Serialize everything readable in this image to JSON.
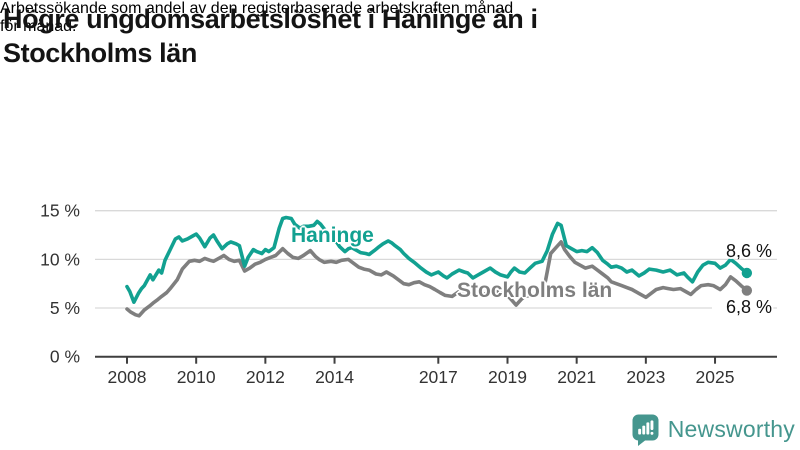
{
  "header": {
    "title_lines": [
      "Högre ungdomsarbetslöshet i Haninge än i",
      "Stockholms län"
    ],
    "subtitle_lines": [
      "Arbetssökande som andel av den registerbaserade arbetskraften månad",
      "för månad."
    ]
  },
  "footer": {
    "brand": "Newsworthy",
    "brand_color": "#45968e"
  },
  "colors": {
    "haninge": "#12a191",
    "stockholm": "#7f7f7f",
    "gridline": "#d9d9d9",
    "axis": "#3f3f3f",
    "tick_text": "#333333"
  },
  "chart_data": {
    "type": "line",
    "title": "Högre ungdomsarbetslöshet i Haninge än i Stockholms län",
    "subtitle": "Arbetssökande som andel av den registerbaserade arbetskraften månad för månad.",
    "unit": "%",
    "grid": "horizontal-only",
    "x_axis": {
      "ticks": [
        2008,
        2010,
        2012,
        2014,
        2017,
        2019,
        2021,
        2023,
        2025
      ],
      "tick_labels": [
        "2008",
        "2010",
        "2012",
        "2014",
        "2017",
        "2019",
        "2021",
        "2023",
        "2025"
      ],
      "min": 2008,
      "max": 2026
    },
    "y_axis": {
      "ticks": [
        0,
        5,
        10,
        15
      ],
      "tick_labels": [
        "0 %",
        "5 %",
        "10 %",
        "15 %"
      ],
      "range": [
        0,
        15
      ]
    },
    "series": [
      {
        "name": "Stockholms län",
        "color": "#7f7f7f",
        "end_label": "6,8 %",
        "end_value": 6.8,
        "points": [
          [
            2008.0,
            4.9
          ],
          [
            2008.1,
            4.6
          ],
          [
            2008.25,
            4.3
          ],
          [
            2008.35,
            4.2
          ],
          [
            2008.5,
            4.8
          ],
          [
            2008.65,
            5.2
          ],
          [
            2008.75,
            5.5
          ],
          [
            2008.9,
            5.9
          ],
          [
            2009.0,
            6.2
          ],
          [
            2009.15,
            6.6
          ],
          [
            2009.25,
            7.0
          ],
          [
            2009.45,
            7.9
          ],
          [
            2009.6,
            9.0
          ],
          [
            2009.8,
            9.8
          ],
          [
            2009.95,
            9.9
          ],
          [
            2010.1,
            9.8
          ],
          [
            2010.25,
            10.1
          ],
          [
            2010.4,
            9.9
          ],
          [
            2010.5,
            9.8
          ],
          [
            2010.65,
            10.1
          ],
          [
            2010.8,
            10.4
          ],
          [
            2010.95,
            10.0
          ],
          [
            2011.1,
            9.8
          ],
          [
            2011.25,
            9.9
          ],
          [
            2011.4,
            8.8
          ],
          [
            2011.55,
            9.1
          ],
          [
            2011.7,
            9.5
          ],
          [
            2011.85,
            9.7
          ],
          [
            2012.0,
            10.0
          ],
          [
            2012.15,
            10.2
          ],
          [
            2012.3,
            10.4
          ],
          [
            2012.5,
            11.1
          ],
          [
            2012.65,
            10.6
          ],
          [
            2012.8,
            10.2
          ],
          [
            2012.95,
            10.1
          ],
          [
            2013.1,
            10.4
          ],
          [
            2013.3,
            10.9
          ],
          [
            2013.45,
            10.3
          ],
          [
            2013.55,
            10.0
          ],
          [
            2013.7,
            9.7
          ],
          [
            2013.9,
            9.8
          ],
          [
            2014.05,
            9.7
          ],
          [
            2014.2,
            9.9
          ],
          [
            2014.4,
            10.0
          ],
          [
            2014.55,
            9.6
          ],
          [
            2014.7,
            9.2
          ],
          [
            2014.85,
            9.0
          ],
          [
            2015.0,
            8.9
          ],
          [
            2015.2,
            8.5
          ],
          [
            2015.35,
            8.4
          ],
          [
            2015.5,
            8.7
          ],
          [
            2015.7,
            8.3
          ],
          [
            2015.85,
            7.9
          ],
          [
            2016.0,
            7.5
          ],
          [
            2016.15,
            7.4
          ],
          [
            2016.3,
            7.6
          ],
          [
            2016.45,
            7.7
          ],
          [
            2016.6,
            7.4
          ],
          [
            2016.75,
            7.2
          ],
          [
            2016.9,
            6.9
          ],
          [
            2017.05,
            6.6
          ],
          [
            2017.2,
            6.3
          ],
          [
            2017.4,
            6.2
          ],
          [
            2017.6,
            6.7
          ],
          [
            2017.75,
            6.6
          ],
          [
            2017.9,
            6.4
          ],
          [
            2018.1,
            6.7
          ],
          [
            2018.25,
            6.5
          ],
          [
            2018.4,
            6.4
          ],
          [
            2018.6,
            6.8
          ],
          [
            2018.75,
            6.6
          ],
          [
            2018.9,
            6.5
          ],
          [
            2019.0,
            6.3
          ],
          [
            2019.15,
            5.7
          ],
          [
            2019.25,
            5.3
          ],
          [
            2019.4,
            5.9
          ],
          [
            2019.5,
            6.2
          ],
          [
            2019.65,
            6.3
          ],
          [
            2019.8,
            6.4
          ],
          [
            2019.95,
            6.9
          ],
          [
            2020.1,
            7.8
          ],
          [
            2020.25,
            10.6
          ],
          [
            2020.4,
            11.2
          ],
          [
            2020.55,
            11.8
          ],
          [
            2020.65,
            11.0
          ],
          [
            2020.8,
            10.3
          ],
          [
            2020.95,
            9.7
          ],
          [
            2021.1,
            9.4
          ],
          [
            2021.25,
            9.1
          ],
          [
            2021.45,
            9.3
          ],
          [
            2021.6,
            8.9
          ],
          [
            2021.75,
            8.5
          ],
          [
            2021.9,
            8.1
          ],
          [
            2022.0,
            7.7
          ],
          [
            2022.15,
            7.5
          ],
          [
            2022.3,
            7.3
          ],
          [
            2022.45,
            7.1
          ],
          [
            2022.6,
            6.9
          ],
          [
            2022.8,
            6.5
          ],
          [
            2023.0,
            6.1
          ],
          [
            2023.15,
            6.5
          ],
          [
            2023.3,
            6.9
          ],
          [
            2023.5,
            7.1
          ],
          [
            2023.65,
            7.0
          ],
          [
            2023.8,
            6.9
          ],
          [
            2024.0,
            7.0
          ],
          [
            2024.15,
            6.7
          ],
          [
            2024.3,
            6.4
          ],
          [
            2024.45,
            6.9
          ],
          [
            2024.6,
            7.3
          ],
          [
            2024.8,
            7.4
          ],
          [
            2024.95,
            7.3
          ],
          [
            2025.15,
            6.9
          ],
          [
            2025.3,
            7.4
          ],
          [
            2025.45,
            8.2
          ],
          [
            2025.6,
            7.8
          ],
          [
            2025.75,
            7.3
          ],
          [
            2025.92,
            6.8
          ]
        ]
      },
      {
        "name": "Haninge",
        "color": "#12a191",
        "end_label": "8,6 %",
        "end_value": 8.6,
        "points": [
          [
            2008.0,
            7.2
          ],
          [
            2008.08,
            6.7
          ],
          [
            2008.2,
            5.6
          ],
          [
            2008.33,
            6.5
          ],
          [
            2008.42,
            7.0
          ],
          [
            2008.5,
            7.3
          ],
          [
            2008.67,
            8.4
          ],
          [
            2008.75,
            7.9
          ],
          [
            2008.92,
            8.9
          ],
          [
            2009.0,
            8.6
          ],
          [
            2009.1,
            9.9
          ],
          [
            2009.25,
            11.0
          ],
          [
            2009.4,
            12.1
          ],
          [
            2009.5,
            12.3
          ],
          [
            2009.6,
            11.9
          ],
          [
            2009.75,
            12.1
          ],
          [
            2009.9,
            12.4
          ],
          [
            2010.0,
            12.6
          ],
          [
            2010.1,
            12.2
          ],
          [
            2010.25,
            11.3
          ],
          [
            2010.4,
            12.2
          ],
          [
            2010.5,
            12.5
          ],
          [
            2010.6,
            11.9
          ],
          [
            2010.75,
            11.1
          ],
          [
            2010.9,
            11.6
          ],
          [
            2011.0,
            11.8
          ],
          [
            2011.15,
            11.6
          ],
          [
            2011.25,
            11.4
          ],
          [
            2011.4,
            9.3
          ],
          [
            2011.5,
            10.2
          ],
          [
            2011.65,
            11.0
          ],
          [
            2011.75,
            10.8
          ],
          [
            2011.9,
            10.6
          ],
          [
            2012.0,
            11.0
          ],
          [
            2012.1,
            10.8
          ],
          [
            2012.25,
            11.2
          ],
          [
            2012.4,
            13.2
          ],
          [
            2012.5,
            14.2
          ],
          [
            2012.6,
            14.3
          ],
          [
            2012.75,
            14.2
          ],
          [
            2012.85,
            13.6
          ],
          [
            2013.0,
            13.2
          ],
          [
            2013.1,
            13.4
          ],
          [
            2013.25,
            13.4
          ],
          [
            2013.4,
            13.5
          ],
          [
            2013.5,
            13.9
          ],
          [
            2013.6,
            13.6
          ],
          [
            2013.75,
            12.9
          ],
          [
            2013.9,
            12.4
          ],
          [
            2014.0,
            12.1
          ],
          [
            2014.15,
            11.3
          ],
          [
            2014.3,
            10.8
          ],
          [
            2014.4,
            11.1
          ],
          [
            2014.5,
            11.2
          ],
          [
            2014.65,
            10.9
          ],
          [
            2014.75,
            10.7
          ],
          [
            2014.9,
            10.6
          ],
          [
            2015.0,
            10.5
          ],
          [
            2015.15,
            10.9
          ],
          [
            2015.25,
            11.2
          ],
          [
            2015.4,
            11.6
          ],
          [
            2015.55,
            11.9
          ],
          [
            2015.65,
            11.7
          ],
          [
            2015.75,
            11.4
          ],
          [
            2015.9,
            11.0
          ],
          [
            2016.0,
            10.6
          ],
          [
            2016.15,
            10.1
          ],
          [
            2016.3,
            9.7
          ],
          [
            2016.5,
            9.1
          ],
          [
            2016.65,
            8.7
          ],
          [
            2016.8,
            8.4
          ],
          [
            2017.0,
            8.7
          ],
          [
            2017.15,
            8.3
          ],
          [
            2017.25,
            8.1
          ],
          [
            2017.4,
            8.5
          ],
          [
            2017.6,
            8.9
          ],
          [
            2017.75,
            8.7
          ],
          [
            2017.85,
            8.6
          ],
          [
            2018.0,
            8.1
          ],
          [
            2018.15,
            8.4
          ],
          [
            2018.3,
            8.7
          ],
          [
            2018.5,
            9.1
          ],
          [
            2018.65,
            8.7
          ],
          [
            2018.8,
            8.4
          ],
          [
            2019.0,
            8.2
          ],
          [
            2019.1,
            8.7
          ],
          [
            2019.2,
            9.1
          ],
          [
            2019.35,
            8.7
          ],
          [
            2019.5,
            8.6
          ],
          [
            2019.65,
            9.1
          ],
          [
            2019.8,
            9.6
          ],
          [
            2019.9,
            9.7
          ],
          [
            2020.0,
            9.8
          ],
          [
            2020.15,
            10.9
          ],
          [
            2020.3,
            12.6
          ],
          [
            2020.45,
            13.7
          ],
          [
            2020.55,
            13.5
          ],
          [
            2020.7,
            11.4
          ],
          [
            2020.85,
            11.1
          ],
          [
            2021.0,
            10.8
          ],
          [
            2021.15,
            10.9
          ],
          [
            2021.3,
            10.8
          ],
          [
            2021.45,
            11.2
          ],
          [
            2021.6,
            10.7
          ],
          [
            2021.75,
            9.9
          ],
          [
            2021.9,
            9.5
          ],
          [
            2022.0,
            9.2
          ],
          [
            2022.15,
            9.3
          ],
          [
            2022.3,
            9.1
          ],
          [
            2022.45,
            8.7
          ],
          [
            2022.6,
            8.9
          ],
          [
            2022.8,
            8.3
          ],
          [
            2022.95,
            8.6
          ],
          [
            2023.1,
            9.0
          ],
          [
            2023.3,
            8.9
          ],
          [
            2023.5,
            8.7
          ],
          [
            2023.7,
            8.9
          ],
          [
            2023.9,
            8.4
          ],
          [
            2024.1,
            8.6
          ],
          [
            2024.2,
            8.2
          ],
          [
            2024.35,
            7.7
          ],
          [
            2024.5,
            8.7
          ],
          [
            2024.65,
            9.4
          ],
          [
            2024.8,
            9.7
          ],
          [
            2025.0,
            9.6
          ],
          [
            2025.15,
            9.1
          ],
          [
            2025.3,
            9.4
          ],
          [
            2025.45,
            10.0
          ],
          [
            2025.6,
            9.6
          ],
          [
            2025.75,
            9.1
          ],
          [
            2025.92,
            8.6
          ]
        ]
      }
    ],
    "legend_position": "inline-labels"
  }
}
